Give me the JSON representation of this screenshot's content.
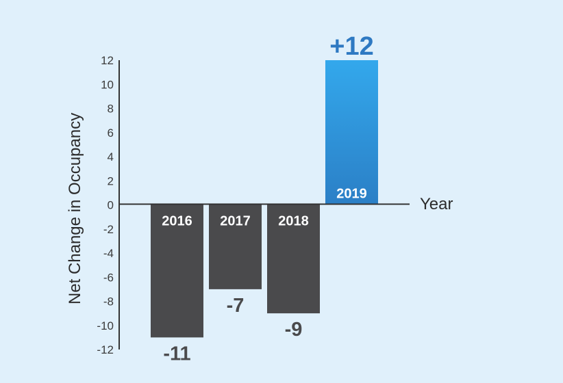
{
  "chart_data": {
    "type": "bar",
    "categories": [
      "2016",
      "2017",
      "2018",
      "2019"
    ],
    "values": [
      -11,
      -7,
      -9,
      12
    ],
    "value_labels": [
      "-11",
      "-7",
      "-9",
      "+12"
    ],
    "ylabel": "Net Change in Occupancy",
    "xlabel": "Year",
    "ylim": [
      -12,
      12
    ],
    "yticks": [
      "12",
      "10",
      "8",
      "6",
      "4",
      "2",
      "0",
      "-2",
      "-4",
      "-6",
      "-8",
      "-10",
      "-12"
    ],
    "grid": false,
    "colors": {
      "negative_bar": "#4a4a4c",
      "positive_bar_top": "#33a8ec",
      "positive_bar_bottom": "#2b7fc6",
      "negative_value_text": "#4a4a4c",
      "positive_value_text": "#2e79c2",
      "background": "#e0f0fb"
    }
  }
}
